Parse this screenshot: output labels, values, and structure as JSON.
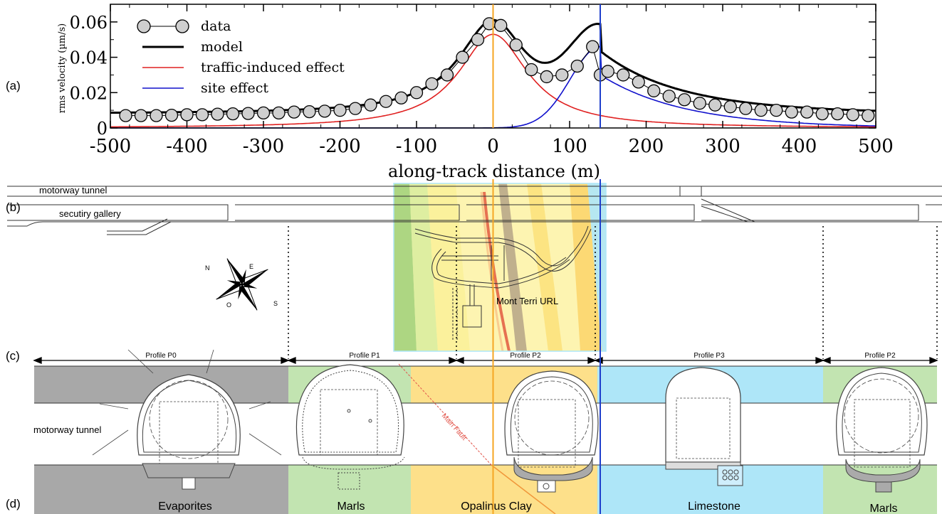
{
  "panel_labels": {
    "a": "(a)",
    "b": "(b)",
    "c": "(c)",
    "d": "(d)"
  },
  "chart_data": {
    "type": "line",
    "title": "",
    "xlabel": "along-track distance (m)",
    "ylabel": "rms velocity (µm/s)",
    "xlim": [
      -500,
      500
    ],
    "ylim": [
      0,
      0.07
    ],
    "xticks": [
      -500,
      -400,
      -300,
      -200,
      -100,
      0,
      100,
      200,
      300,
      400,
      500
    ],
    "yticks": [
      0,
      0.02,
      0.04,
      0.06
    ],
    "ytick_labels": [
      "0",
      "0.02",
      "0.04",
      "0.06"
    ],
    "legend": {
      "placement": "top-left",
      "entries": [
        "data",
        "model",
        "traffic-induced effect",
        "site effect"
      ]
    },
    "series": [
      {
        "name": "data",
        "style": "markers-line",
        "color": "#000000",
        "x": [
          -480,
          -460,
          -440,
          -420,
          -400,
          -380,
          -360,
          -340,
          -320,
          -300,
          -280,
          -260,
          -240,
          -220,
          -200,
          -180,
          -160,
          -140,
          -120,
          -100,
          -80,
          -60,
          -40,
          -20,
          -5,
          10,
          30,
          50,
          70,
          90,
          110,
          130,
          140,
          150,
          170,
          190,
          210,
          230,
          250,
          270,
          290,
          310,
          330,
          350,
          370,
          390,
          410,
          430,
          450,
          470,
          490
        ],
        "y": [
          0.007,
          0.007,
          0.007,
          0.0072,
          0.0075,
          0.0075,
          0.0078,
          0.008,
          0.0082,
          0.0085,
          0.0085,
          0.009,
          0.0092,
          0.0095,
          0.01,
          0.011,
          0.013,
          0.015,
          0.017,
          0.02,
          0.025,
          0.03,
          0.04,
          0.05,
          0.059,
          0.058,
          0.047,
          0.033,
          0.029,
          0.03,
          0.035,
          0.046,
          0.03,
          0.032,
          0.03,
          0.026,
          0.021,
          0.018,
          0.016,
          0.014,
          0.013,
          0.012,
          0.011,
          0.01,
          0.01,
          0.009,
          0.009,
          0.008,
          0.008,
          0.0075,
          0.007
        ]
      },
      {
        "name": "model",
        "style": "line",
        "color": "#000000",
        "model": "sum",
        "baseline": 0.008
      },
      {
        "name": "traffic-induced effect",
        "style": "line",
        "color": "#e02020",
        "model": "lorentzian",
        "amplitude": 0.053,
        "center": 0,
        "width": 55
      },
      {
        "name": "site effect",
        "style": "line",
        "color": "#1010cc",
        "model": "asymmetric",
        "amplitude": 0.046,
        "break_x": 140,
        "width_left": 55,
        "right_level": 0.03,
        "width_right": 110
      }
    ],
    "vertical_lines": [
      {
        "x": 0,
        "color": "#f5a623"
      },
      {
        "x": 140,
        "color": "#1f3fcc"
      }
    ]
  },
  "map": {
    "motorway_label": "motorway tunnel",
    "gallery_label": "secutiry gallery",
    "url_label": "Mont Terri URL",
    "compass_letters": [
      "N",
      "E",
      "S",
      "O"
    ]
  },
  "profiles": [
    {
      "name": "Profile P0"
    },
    {
      "name": "Profile P1"
    },
    {
      "name": "Profile P2"
    },
    {
      "name": "Profile P3"
    },
    {
      "name": "Profile P2"
    }
  ],
  "tunnel_label": "motorway tunnel",
  "main_fault_label": "Main Fault",
  "geology": [
    {
      "name": "Evaporites",
      "color": "#a8a8a8"
    },
    {
      "name": "Marls",
      "color": "#c2e4b1"
    },
    {
      "name": "Opalinus Clay",
      "color": "#fde08a"
    },
    {
      "name": "Limestone",
      "color": "#aee6f8"
    },
    {
      "name": "Marls",
      "color": "#c2e4b1"
    }
  ]
}
